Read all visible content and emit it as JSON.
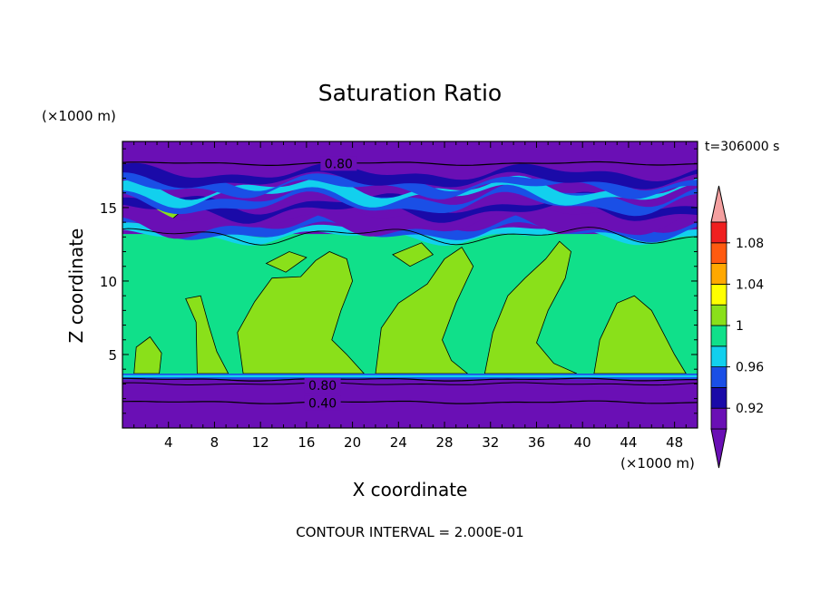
{
  "chart_data": {
    "type": "heatmap",
    "title": "Saturation Ratio",
    "xlabel": "X coordinate",
    "ylabel": "Z coordinate",
    "x_unit": "(×1000 m)",
    "y_unit": "(×1000 m)",
    "time_label": "t=306000 s",
    "footer": "CONTOUR INTERVAL = 2.000E-01",
    "xlim": [
      0,
      50
    ],
    "ylim": [
      0,
      19.5
    ],
    "x_ticks": [
      4,
      8,
      12,
      16,
      20,
      24,
      28,
      32,
      36,
      40,
      44,
      48
    ],
    "y_ticks": [
      5,
      10,
      15
    ],
    "contour_labels": [
      {
        "text": "0.80",
        "x": 18.8,
        "z": 18.0
      },
      {
        "text": "0.80",
        "x": 17.4,
        "z": 2.9
      },
      {
        "text": "0.40",
        "x": 17.4,
        "z": 1.7
      }
    ],
    "colorbar": {
      "labels": [
        "1.08",
        "1.04",
        "1",
        "0.96",
        "0.92"
      ],
      "levels": [
        0.9,
        0.92,
        0.94,
        0.96,
        0.98,
        1.0,
        1.02,
        1.04,
        1.06,
        1.08,
        1.1
      ],
      "colors": [
        "#6a0fb5",
        "#1a0aa8",
        "#1a4fe6",
        "#12d0ee",
        "#10e08a",
        "#8ae01a",
        "#ffff00",
        "#ffa800",
        "#ff5a10",
        "#f02020"
      ],
      "low_extend_color": "#6a0fb5",
      "high_extend_color": "#f4a0a0"
    },
    "bands": [
      {
        "z_bottom": 0.0,
        "z_top": 3.3,
        "level": "< 0.90"
      },
      {
        "z_bottom": 3.3,
        "z_top": 3.6,
        "level": "0.94 - 0.98"
      },
      {
        "z_bottom": 3.6,
        "z_top": 13.0,
        "level": "0.98 - 1.02 (mixed 1.00 - 1.02 patches)"
      },
      {
        "z_bottom": 13.0,
        "z_top": 17.5,
        "level": "0.90 - 0.98 (banded)"
      },
      {
        "z_bottom": 17.5,
        "z_top": 19.5,
        "level": "< 0.90"
      }
    ]
  }
}
